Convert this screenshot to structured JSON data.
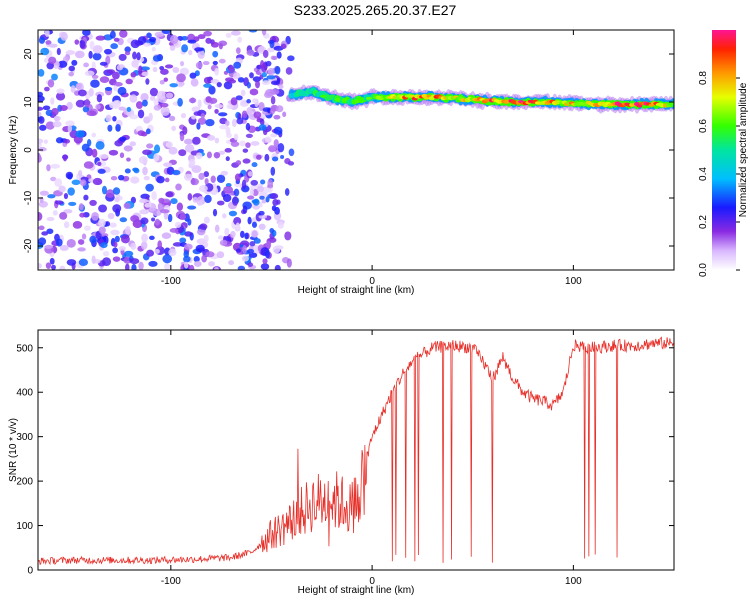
{
  "title": "S233.2025.265.20.37.E27",
  "chart_data": [
    {
      "type": "heatmap",
      "xlabel": "Height of straight line (km)",
      "ylabel": "Frequency (Hz)",
      "xlim": [
        -166,
        150
      ],
      "ylim": [
        -25,
        25
      ],
      "xticks": [
        -100,
        0,
        100
      ],
      "yticks": [
        -20,
        -10,
        0,
        10,
        20
      ],
      "colorbar": {
        "label": "Normalized spectral amplitude",
        "range": [
          0,
          1
        ],
        "ticks": [
          "0.0",
          "0.2",
          "0.4",
          "0.6",
          "0.8"
        ]
      },
      "ridge": {
        "x": [
          -40,
          -30,
          -20,
          -10,
          0,
          10,
          20,
          30,
          40,
          50,
          60,
          70,
          80,
          90,
          100,
          110,
          120,
          130,
          140,
          150
        ],
        "frequency": [
          11.5,
          12.2,
          10.8,
          10.0,
          11.0,
          11.0,
          11.0,
          11.0,
          10.8,
          10.5,
          10.2,
          10.0,
          10.0,
          10.0,
          9.8,
          9.6,
          9.5,
          9.5,
          9.5,
          9.4
        ],
        "amplitude": [
          0.45,
          0.5,
          0.55,
          0.6,
          0.55,
          0.7,
          0.85,
          0.85,
          0.7,
          0.75,
          0.85,
          0.9,
          0.85,
          0.8,
          0.75,
          0.8,
          0.9,
          0.95,
          0.9,
          0.6
        ]
      },
      "noise_region_x": [
        -166,
        -45
      ]
    },
    {
      "type": "line",
      "xlabel": "Height of straight line (km)",
      "ylabel": "SNR (10 * v/v)",
      "xlim": [
        -166,
        150
      ],
      "ylim": [
        0,
        540
      ],
      "xticks": [
        -100,
        0,
        100
      ],
      "yticks": [
        0,
        100,
        200,
        300,
        400,
        500
      ],
      "series": [
        {
          "color": "#e8302a",
          "x": [
            -166,
            -150,
            -130,
            -110,
            -90,
            -70,
            -60,
            -50,
            -40,
            -30,
            -20,
            -10,
            -5,
            0,
            5,
            10,
            15,
            20,
            30,
            40,
            50,
            55,
            60,
            65,
            70,
            75,
            80,
            85,
            90,
            95,
            100,
            110,
            120,
            130,
            140,
            150
          ],
          "values": [
            20,
            22,
            22,
            22,
            24,
            28,
            40,
            80,
            110,
            150,
            160,
            140,
            200,
            300,
            350,
            400,
            440,
            470,
            500,
            505,
            500,
            470,
            430,
            480,
            430,
            400,
            385,
            380,
            370,
            400,
            505,
            500,
            505,
            505,
            510,
            510
          ]
        }
      ]
    }
  ]
}
